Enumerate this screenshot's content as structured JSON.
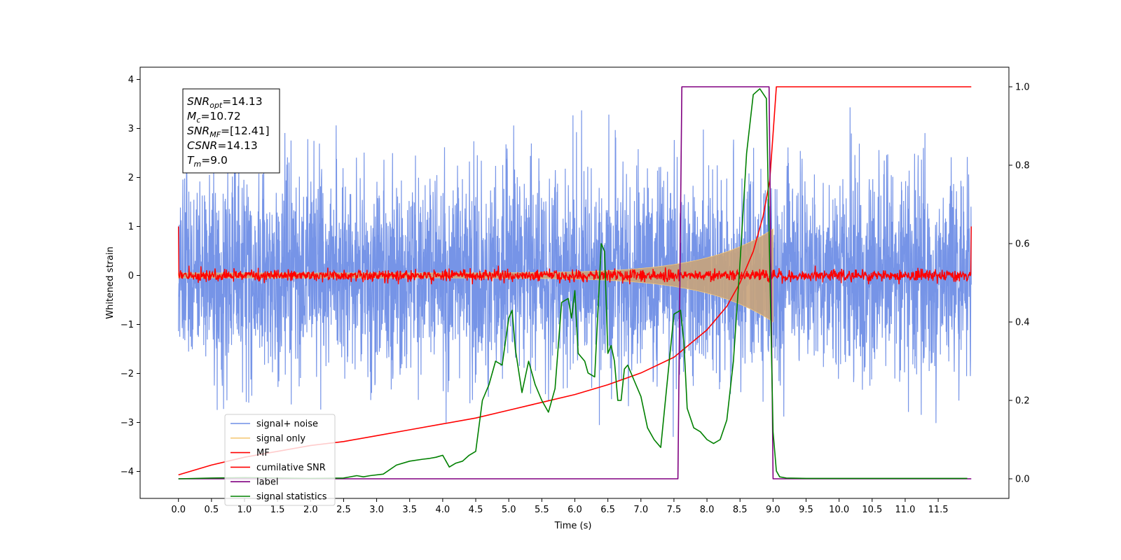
{
  "chart_data": {
    "type": "line",
    "title": "",
    "xlabel": "Time (s)",
    "ylabel": "Whitened strain",
    "y2label": "",
    "xlim": [
      -0.58,
      12.57
    ],
    "ylim": [
      -4.55,
      4.25
    ],
    "y2lim": [
      -0.05,
      1.05
    ],
    "x_ticks": [
      0.0,
      0.5,
      1.0,
      1.5,
      2.0,
      2.5,
      3.0,
      3.5,
      4.0,
      4.5,
      5.0,
      5.5,
      6.0,
      6.5,
      7.0,
      7.5,
      8.0,
      8.5,
      9.0,
      9.5,
      10.0,
      10.5,
      11.0,
      11.5
    ],
    "x_tick_labels": [
      "0.0",
      "0.5",
      "1.0",
      "1.5",
      "2.0",
      "2.5",
      "3.0",
      "3.5",
      "4.0",
      "4.5",
      "5.0",
      "5.5",
      "6.0",
      "6.5",
      "7.0",
      "7.5",
      "8.0",
      "8.5",
      "9.0",
      "9.5",
      "10.0",
      "10.5",
      "11.0",
      "11.5"
    ],
    "y_ticks": [
      -4,
      -3,
      -2,
      -1,
      0,
      1,
      2,
      3,
      4
    ],
    "y_tick_labels": [
      "−4",
      "−3",
      "−2",
      "−1",
      "0",
      "1",
      "2",
      "3",
      "4"
    ],
    "y2_ticks": [
      0.0,
      0.2,
      0.4,
      0.6,
      0.8,
      1.0
    ],
    "y2_tick_labels": [
      "0.0",
      "0.2",
      "0.4",
      "0.6",
      "0.8",
      "1.0"
    ],
    "grid": false,
    "legend_position": "lower-left",
    "annotation_box": [
      {
        "base": "SNR",
        "sub": "opt",
        "value": "=14.13"
      },
      {
        "base": "M",
        "sub": "c",
        "value": "=10.72"
      },
      {
        "base": "SNR",
        "sub": "MF",
        "value": "=[12.41]"
      },
      {
        "base": "CSNR",
        "sub": "",
        "value": "=14.13"
      },
      {
        "base": "T",
        "sub": "m",
        "value": "=9.0"
      }
    ],
    "series": [
      {
        "name": "signal+ noise",
        "axis": "left",
        "color": "#6f8ee6",
        "kind": "noise",
        "x_range": [
          0.0,
          12.0
        ],
        "std": 1.0,
        "min": -4.15,
        "max": 3.85
      },
      {
        "name": "signal only",
        "axis": "left",
        "color": "#f5c97a",
        "kind": "chirp",
        "x_range": [
          0.0,
          9.0
        ],
        "max_amplitude": 1.0
      },
      {
        "name": "MF",
        "axis": "left",
        "color": "#ff0000",
        "kind": "noise",
        "x_range": [
          0.0,
          12.0
        ],
        "std": 0.06,
        "endpoints": {
          "x": [
            0.0,
            12.0
          ],
          "y": [
            1.0,
            1.0
          ]
        }
      },
      {
        "name": "cumilative SNR",
        "axis": "right",
        "color": "#ff0000",
        "kind": "line",
        "x": [
          0.0,
          0.5,
          1.0,
          1.5,
          2.0,
          2.5,
          3.0,
          3.5,
          4.0,
          4.5,
          5.0,
          5.5,
          6.0,
          6.5,
          7.0,
          7.5,
          8.0,
          8.3,
          8.5,
          8.7,
          8.85,
          8.95,
          9.0,
          9.05,
          12.0
        ],
        "y": [
          0.01,
          0.035,
          0.055,
          0.07,
          0.085,
          0.095,
          0.11,
          0.125,
          0.14,
          0.155,
          0.175,
          0.195,
          0.215,
          0.24,
          0.27,
          0.31,
          0.38,
          0.44,
          0.5,
          0.58,
          0.67,
          0.76,
          0.88,
          1.0,
          1.0
        ]
      },
      {
        "name": "label",
        "axis": "right",
        "color": "#800080",
        "kind": "line",
        "x": [
          0.0,
          7.56,
          7.62,
          8.94,
          9.0,
          12.0
        ],
        "y": [
          0.0,
          0.0,
          1.0,
          1.0,
          0.0,
          0.0
        ]
      },
      {
        "name": "signal statistics",
        "axis": "right",
        "color": "#008000",
        "kind": "line",
        "x": [
          0.0,
          0.5,
          1.0,
          1.5,
          2.0,
          2.5,
          2.7,
          2.8,
          2.9,
          3.1,
          3.3,
          3.5,
          3.7,
          3.8,
          3.9,
          4.0,
          4.1,
          4.2,
          4.3,
          4.4,
          4.5,
          4.6,
          4.7,
          4.8,
          4.9,
          5.0,
          5.05,
          5.1,
          5.2,
          5.3,
          5.4,
          5.5,
          5.6,
          5.7,
          5.8,
          5.9,
          5.95,
          6.0,
          6.05,
          6.15,
          6.2,
          6.3,
          6.4,
          6.45,
          6.5,
          6.55,
          6.6,
          6.65,
          6.7,
          6.75,
          6.8,
          6.9,
          7.0,
          7.1,
          7.2,
          7.3,
          7.4,
          7.5,
          7.6,
          7.65,
          7.7,
          7.8,
          7.9,
          8.0,
          8.1,
          8.2,
          8.3,
          8.4,
          8.5,
          8.6,
          8.7,
          8.8,
          8.9,
          9.0,
          9.05,
          9.1,
          9.2,
          9.5,
          11.94
        ],
        "y": [
          0.0,
          0.002,
          0.003,
          0.002,
          0.001,
          0.002,
          0.008,
          0.005,
          0.008,
          0.012,
          0.035,
          0.045,
          0.05,
          0.052,
          0.055,
          0.06,
          0.03,
          0.04,
          0.045,
          0.06,
          0.07,
          0.2,
          0.24,
          0.3,
          0.29,
          0.41,
          0.43,
          0.33,
          0.22,
          0.3,
          0.24,
          0.2,
          0.17,
          0.23,
          0.45,
          0.46,
          0.41,
          0.48,
          0.32,
          0.3,
          0.27,
          0.26,
          0.6,
          0.58,
          0.32,
          0.34,
          0.3,
          0.2,
          0.2,
          0.28,
          0.29,
          0.25,
          0.21,
          0.13,
          0.1,
          0.08,
          0.25,
          0.42,
          0.43,
          0.35,
          0.18,
          0.13,
          0.12,
          0.1,
          0.09,
          0.1,
          0.15,
          0.3,
          0.55,
          0.83,
          0.98,
          0.995,
          0.97,
          0.12,
          0.02,
          0.005,
          0.002,
          0.001,
          0.001
        ]
      }
    ]
  }
}
